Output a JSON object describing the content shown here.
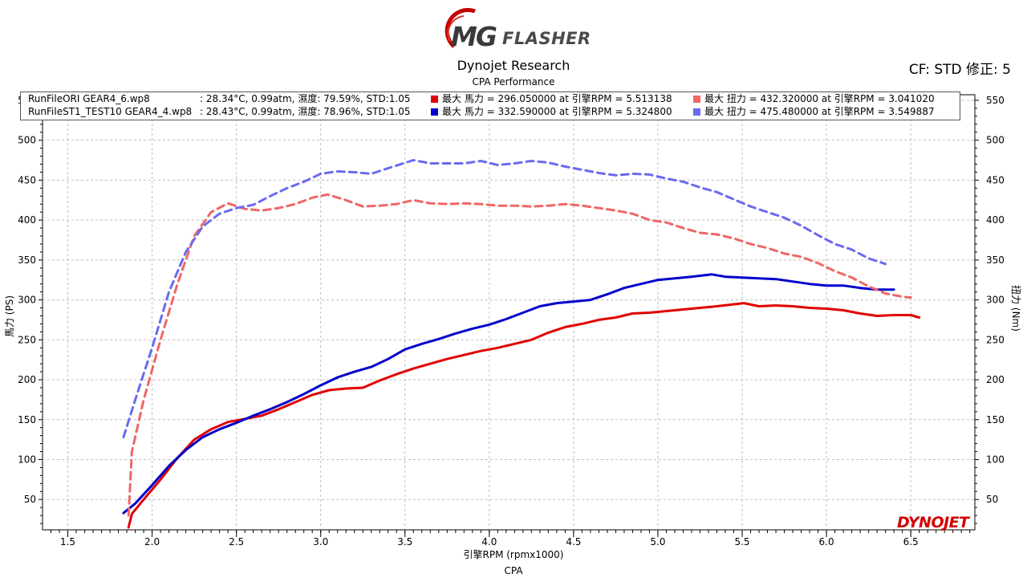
{
  "header": {
    "logo_mg": "MG",
    "logo_flasher": "FLASHER",
    "title": "Dynojet Research",
    "subtitle": "CPA Performance",
    "cf": "CF: STD 修正: 5"
  },
  "legend": {
    "rows": [
      {
        "file": "RunFileORI GEAR4_6.wp8",
        "conditions": ": 28.34°C, 0.99atm, 濕度: 79.59%, STD:1.05",
        "hp_text": "最大 馬力 =  296.050000 at 引擎RPM = 5.513138",
        "tq_text": "最大 扭力 =  432.320000 at 引擎RPM = 3.041020",
        "hp_color": "#e00000",
        "tq_color": "#f06666"
      },
      {
        "file": "RunFileST1_TEST10 GEAR4_4.wp8",
        "conditions": ": 28.43°C, 0.99atm, 濕度: 78.96%, STD:1.05",
        "hp_text": "最大 馬力 =  332.590000 at 引擎RPM = 5.324800",
        "tq_text": "最大 扭力 =  475.480000 at 引擎RPM = 3.549887",
        "hp_color": "#0000cc",
        "tq_color": "#6a6af0"
      }
    ]
  },
  "axes": {
    "xlabel": "引擎RPM (rpmx1000)",
    "ylabel_left": "馬力 (PS)",
    "ylabel_right": "扭力 (Nm)",
    "footer": "CPA"
  },
  "brand": "DYNOJET",
  "chart_data": {
    "type": "line",
    "xlim": [
      1.35,
      6.88
    ],
    "ylim": [
      12,
      557
    ],
    "x_ticks": [
      "1.5",
      "2.0",
      "2.5",
      "3.0",
      "3.5",
      "4.0",
      "4.5",
      "5.0",
      "5.5",
      "6.0",
      "6.5"
    ],
    "y_ticks": [
      "50",
      "100",
      "150",
      "200",
      "250",
      "300",
      "350",
      "400",
      "450",
      "500",
      "550"
    ],
    "grid": true,
    "series": [
      {
        "name": "RunFileORI GEAR4_6.wp8 馬力",
        "color": "#e00000",
        "style": "solid",
        "points": [
          [
            1.86,
            15
          ],
          [
            1.88,
            32
          ],
          [
            1.95,
            50
          ],
          [
            2.05,
            75
          ],
          [
            2.15,
            102
          ],
          [
            2.25,
            125
          ],
          [
            2.35,
            138
          ],
          [
            2.45,
            147
          ],
          [
            2.55,
            151
          ],
          [
            2.65,
            155
          ],
          [
            2.75,
            163
          ],
          [
            2.85,
            172
          ],
          [
            2.95,
            181
          ],
          [
            3.05,
            187
          ],
          [
            3.15,
            189
          ],
          [
            3.25,
            190
          ],
          [
            3.35,
            199
          ],
          [
            3.45,
            207
          ],
          [
            3.55,
            214
          ],
          [
            3.65,
            220
          ],
          [
            3.75,
            226
          ],
          [
            3.85,
            231
          ],
          [
            3.95,
            236
          ],
          [
            4.05,
            240
          ],
          [
            4.15,
            245
          ],
          [
            4.25,
            250
          ],
          [
            4.35,
            259
          ],
          [
            4.45,
            266
          ],
          [
            4.55,
            270
          ],
          [
            4.65,
            275
          ],
          [
            4.75,
            278
          ],
          [
            4.85,
            283
          ],
          [
            4.95,
            284
          ],
          [
            5.05,
            286
          ],
          [
            5.15,
            288
          ],
          [
            5.25,
            290
          ],
          [
            5.35,
            292
          ],
          [
            5.51,
            296
          ],
          [
            5.6,
            292
          ],
          [
            5.7,
            293
          ],
          [
            5.8,
            292
          ],
          [
            5.9,
            290
          ],
          [
            6.0,
            289
          ],
          [
            6.1,
            287
          ],
          [
            6.2,
            283
          ],
          [
            6.3,
            280
          ],
          [
            6.4,
            281
          ],
          [
            6.5,
            281
          ],
          [
            6.55,
            278
          ]
        ]
      },
      {
        "name": "RunFileST1_TEST10 GEAR4_4.wp8 馬力",
        "color": "#0000cc",
        "style": "solid",
        "points": [
          [
            1.83,
            33
          ],
          [
            1.9,
            45
          ],
          [
            2.0,
            68
          ],
          [
            2.1,
            92
          ],
          [
            2.2,
            112
          ],
          [
            2.3,
            128
          ],
          [
            2.4,
            138
          ],
          [
            2.5,
            146
          ],
          [
            2.6,
            155
          ],
          [
            2.7,
            163
          ],
          [
            2.8,
            172
          ],
          [
            2.9,
            182
          ],
          [
            3.0,
            193
          ],
          [
            3.1,
            203
          ],
          [
            3.2,
            210
          ],
          [
            3.3,
            216
          ],
          [
            3.4,
            226
          ],
          [
            3.5,
            238
          ],
          [
            3.6,
            245
          ],
          [
            3.7,
            251
          ],
          [
            3.8,
            258
          ],
          [
            3.9,
            264
          ],
          [
            4.0,
            269
          ],
          [
            4.1,
            276
          ],
          [
            4.2,
            284
          ],
          [
            4.3,
            292
          ],
          [
            4.4,
            296
          ],
          [
            4.5,
            298
          ],
          [
            4.6,
            300
          ],
          [
            4.7,
            307
          ],
          [
            4.8,
            315
          ],
          [
            4.9,
            320
          ],
          [
            5.0,
            325
          ],
          [
            5.1,
            327
          ],
          [
            5.2,
            329
          ],
          [
            5.32,
            332
          ],
          [
            5.4,
            329
          ],
          [
            5.5,
            328
          ],
          [
            5.6,
            327
          ],
          [
            5.7,
            326
          ],
          [
            5.8,
            323
          ],
          [
            5.9,
            320
          ],
          [
            6.0,
            318
          ],
          [
            6.1,
            318
          ],
          [
            6.2,
            315
          ],
          [
            6.3,
            313
          ],
          [
            6.4,
            313
          ]
        ]
      },
      {
        "name": "RunFileORI GEAR4_6.wp8 扭力",
        "color": "#f06666",
        "style": "dashed",
        "points": [
          [
            1.86,
            30
          ],
          [
            1.88,
            110
          ],
          [
            1.95,
            175
          ],
          [
            2.05,
            250
          ],
          [
            2.15,
            320
          ],
          [
            2.25,
            380
          ],
          [
            2.35,
            410
          ],
          [
            2.45,
            421
          ],
          [
            2.55,
            414
          ],
          [
            2.65,
            412
          ],
          [
            2.75,
            415
          ],
          [
            2.85,
            420
          ],
          [
            2.95,
            428
          ],
          [
            3.04,
            432
          ],
          [
            3.15,
            425
          ],
          [
            3.25,
            417
          ],
          [
            3.35,
            418
          ],
          [
            3.45,
            420
          ],
          [
            3.55,
            425
          ],
          [
            3.65,
            421
          ],
          [
            3.75,
            420
          ],
          [
            3.85,
            421
          ],
          [
            3.95,
            420
          ],
          [
            4.05,
            418
          ],
          [
            4.15,
            418
          ],
          [
            4.25,
            417
          ],
          [
            4.35,
            418
          ],
          [
            4.45,
            420
          ],
          [
            4.55,
            418
          ],
          [
            4.65,
            415
          ],
          [
            4.75,
            412
          ],
          [
            4.85,
            408
          ],
          [
            4.95,
            400
          ],
          [
            5.05,
            397
          ],
          [
            5.15,
            390
          ],
          [
            5.25,
            384
          ],
          [
            5.35,
            382
          ],
          [
            5.45,
            377
          ],
          [
            5.55,
            370
          ],
          [
            5.65,
            365
          ],
          [
            5.75,
            358
          ],
          [
            5.85,
            354
          ],
          [
            5.95,
            346
          ],
          [
            6.05,
            336
          ],
          [
            6.15,
            328
          ],
          [
            6.25,
            317
          ],
          [
            6.35,
            308
          ],
          [
            6.45,
            304
          ],
          [
            6.5,
            303
          ]
        ]
      },
      {
        "name": "RunFileST1_TEST10 GEAR4_4.wp8 扭力",
        "color": "#6a6af0",
        "style": "dashed",
        "points": [
          [
            1.83,
            128
          ],
          [
            1.9,
            175
          ],
          [
            2.0,
            240
          ],
          [
            2.1,
            310
          ],
          [
            2.2,
            360
          ],
          [
            2.3,
            392
          ],
          [
            2.4,
            408
          ],
          [
            2.5,
            415
          ],
          [
            2.6,
            419
          ],
          [
            2.7,
            430
          ],
          [
            2.8,
            440
          ],
          [
            2.9,
            448
          ],
          [
            3.0,
            458
          ],
          [
            3.1,
            461
          ],
          [
            3.2,
            460
          ],
          [
            3.3,
            458
          ],
          [
            3.4,
            465
          ],
          [
            3.55,
            475
          ],
          [
            3.65,
            471
          ],
          [
            3.75,
            471
          ],
          [
            3.85,
            471
          ],
          [
            3.95,
            474
          ],
          [
            4.05,
            469
          ],
          [
            4.15,
            471
          ],
          [
            4.25,
            474
          ],
          [
            4.35,
            472
          ],
          [
            4.45,
            467
          ],
          [
            4.55,
            463
          ],
          [
            4.65,
            459
          ],
          [
            4.75,
            456
          ],
          [
            4.85,
            458
          ],
          [
            4.95,
            457
          ],
          [
            5.05,
            452
          ],
          [
            5.15,
            448
          ],
          [
            5.25,
            441
          ],
          [
            5.35,
            435
          ],
          [
            5.45,
            426
          ],
          [
            5.55,
            417
          ],
          [
            5.65,
            410
          ],
          [
            5.75,
            403
          ],
          [
            5.85,
            393
          ],
          [
            5.95,
            381
          ],
          [
            6.05,
            370
          ],
          [
            6.15,
            363
          ],
          [
            6.25,
            352
          ],
          [
            6.35,
            345
          ]
        ]
      }
    ]
  }
}
